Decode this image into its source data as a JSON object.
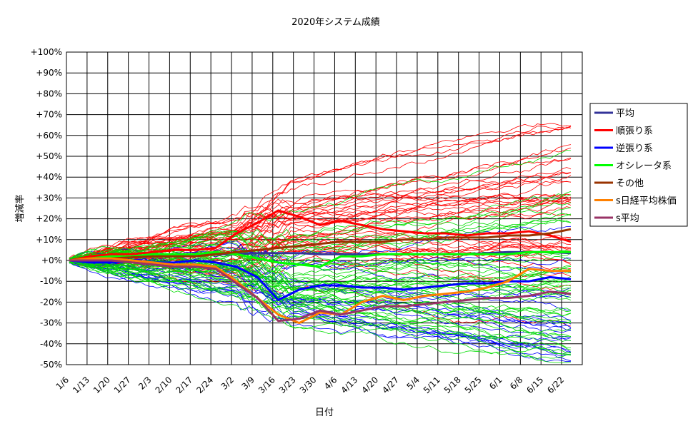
{
  "chart_data": {
    "type": "line",
    "title": "2020年システム成績",
    "xlabel": "日付",
    "ylabel": "増減率",
    "ylim": [
      -50,
      100
    ],
    "y_ticks": [
      "+100%",
      "+90%",
      "+80%",
      "+70%",
      "+60%",
      "+50%",
      "+40%",
      "+30%",
      "+20%",
      "+10%",
      "+0%",
      "-10%",
      "-20%",
      "-30%",
      "-40%",
      "-50%"
    ],
    "x_ticks": [
      "1/6",
      "1/13",
      "1/20",
      "1/27",
      "2/3",
      "2/10",
      "2/17",
      "2/24",
      "3/2",
      "3/9",
      "3/16",
      "3/23",
      "3/30",
      "4/6",
      "4/13",
      "4/20",
      "4/27",
      "5/4",
      "5/11",
      "5/18",
      "5/25",
      "6/1",
      "6/8",
      "6/15",
      "6/22"
    ],
    "grid": true,
    "legend_position": "right",
    "colors": {
      "trend_thin": "#ff0000",
      "reversal_thin": "#0000ff",
      "oscillator_thin": "#00dd00"
    },
    "series": [
      {
        "name": "平均",
        "color": "#333399",
        "values": [
          0,
          0.5,
          1,
          1.5,
          2,
          2,
          2.5,
          3,
          3,
          3.5,
          3.5,
          3.5,
          3,
          3,
          3,
          3,
          3,
          3,
          3,
          3,
          3.5,
          4,
          4,
          4,
          3.5
        ]
      },
      {
        "name": "順張り系",
        "color": "#ff0000",
        "values": [
          0,
          2,
          3,
          3,
          4,
          5,
          5,
          6,
          13,
          18,
          24,
          21,
          17,
          19,
          17,
          15,
          14,
          13,
          13,
          12,
          13,
          13,
          14,
          12,
          9
        ]
      },
      {
        "name": "逆張り系",
        "color": "#0000ff",
        "values": [
          0,
          -1,
          -1,
          -0.5,
          -1,
          -1,
          0,
          -1,
          -3,
          -8,
          -19,
          -14,
          -12,
          -12,
          -13,
          -13,
          -14,
          -13,
          -12,
          -11,
          -11,
          -10,
          -10,
          -8,
          -9
        ]
      },
      {
        "name": "オシレータ系",
        "color": "#00ff00",
        "values": [
          0,
          1,
          2,
          2,
          3,
          3,
          3,
          4,
          3,
          1,
          -1,
          -2,
          -3,
          2,
          2,
          3,
          3,
          3,
          3,
          3,
          3,
          3,
          4,
          4,
          4
        ]
      },
      {
        "name": "その他",
        "color": "#993300",
        "values": [
          0,
          1,
          1,
          1.5,
          2,
          2,
          2,
          3,
          4,
          5,
          6,
          7,
          8,
          9,
          9,
          9,
          10,
          10,
          11,
          11,
          11,
          12,
          12,
          13,
          15
        ]
      },
      {
        "name": "s日経平均株価",
        "color": "#ff8000",
        "values": [
          0,
          1,
          1,
          0,
          -1,
          -2,
          -2,
          -3,
          -10,
          -18,
          -26,
          -30,
          -25,
          -26,
          -20,
          -17,
          -19,
          -17,
          -16,
          -15,
          -13,
          -10,
          -4,
          -5,
          -5
        ]
      },
      {
        "name": "s平均",
        "color": "#993366",
        "values": [
          0,
          0,
          0,
          -1,
          -2,
          -3,
          -3,
          -4,
          -11,
          -18,
          -29,
          -28,
          -24,
          -26,
          -24,
          -22,
          -22,
          -21,
          -20,
          -19,
          -18,
          -18,
          -17,
          -15,
          -16
        ]
      }
    ]
  }
}
